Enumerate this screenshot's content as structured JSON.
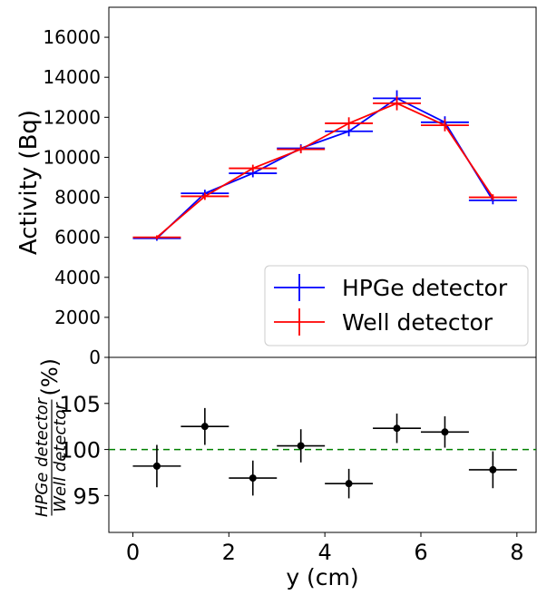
{
  "chart_data": [
    {
      "type": "line",
      "ylabel": "Activity (Bq)",
      "ylim": [
        0,
        17500
      ],
      "xlim": [
        -0.5,
        8.4
      ],
      "y_ticks": [
        0,
        2000,
        4000,
        6000,
        8000,
        10000,
        12000,
        14000,
        16000
      ],
      "legend_position": "bottom-right",
      "grid": false,
      "series": [
        {
          "name": "HPGe detector",
          "color": "#0000ff",
          "points": [
            {
              "x": 0.5,
              "y": 5950,
              "xerr": 0.5,
              "yerr": 120
            },
            {
              "x": 1.5,
              "y": 8200,
              "xerr": 0.5,
              "yerr": 180
            },
            {
              "x": 2.5,
              "y": 9200,
              "xerr": 0.5,
              "yerr": 200
            },
            {
              "x": 3.5,
              "y": 10450,
              "xerr": 0.5,
              "yerr": 200
            },
            {
              "x": 4.5,
              "y": 11300,
              "xerr": 0.5,
              "yerr": 250
            },
            {
              "x": 5.5,
              "y": 12950,
              "xerr": 0.5,
              "yerr": 400
            },
            {
              "x": 6.5,
              "y": 11750,
              "xerr": 0.5,
              "yerr": 300
            },
            {
              "x": 7.5,
              "y": 7850,
              "xerr": 0.5,
              "yerr": 200
            }
          ]
        },
        {
          "name": "Well detector",
          "color": "#ff0000",
          "points": [
            {
              "x": 0.5,
              "y": 6000,
              "xerr": 0.5,
              "yerr": 100
            },
            {
              "x": 1.5,
              "y": 8050,
              "xerr": 0.5,
              "yerr": 180
            },
            {
              "x": 2.5,
              "y": 9450,
              "xerr": 0.5,
              "yerr": 180
            },
            {
              "x": 3.5,
              "y": 10400,
              "xerr": 0.5,
              "yerr": 200
            },
            {
              "x": 4.5,
              "y": 11700,
              "xerr": 0.5,
              "yerr": 300
            },
            {
              "x": 5.5,
              "y": 12700,
              "xerr": 0.5,
              "yerr": 350
            },
            {
              "x": 6.5,
              "y": 11600,
              "xerr": 0.5,
              "yerr": 300
            },
            {
              "x": 7.5,
              "y": 8000,
              "xerr": 0.5,
              "yerr": 150
            }
          ]
        }
      ]
    },
    {
      "type": "scatter",
      "xlabel": "y (cm)",
      "ylabel_numerator": "HPGe detector",
      "ylabel_denominator": "Well detector",
      "ylabel_unit": "(%)",
      "xlim": [
        -0.5,
        8.4
      ],
      "ylim": [
        91,
        110
      ],
      "x_ticks": [
        0,
        2,
        4,
        6,
        8
      ],
      "y_ticks": [
        95,
        100,
        105
      ],
      "reference_line": {
        "y": 100,
        "color": "#008000",
        "style": "dashed"
      },
      "grid": false,
      "points": [
        {
          "x": 0.5,
          "y": 98.2,
          "xerr": 0.5,
          "yerr": 2.3
        },
        {
          "x": 1.5,
          "y": 102.5,
          "xerr": 0.5,
          "yerr": 2.0
        },
        {
          "x": 2.5,
          "y": 96.9,
          "xerr": 0.5,
          "yerr": 1.9
        },
        {
          "x": 3.5,
          "y": 100.4,
          "xerr": 0.5,
          "yerr": 1.8
        },
        {
          "x": 4.5,
          "y": 96.3,
          "xerr": 0.5,
          "yerr": 1.6
        },
        {
          "x": 5.5,
          "y": 102.3,
          "xerr": 0.5,
          "yerr": 1.6
        },
        {
          "x": 6.5,
          "y": 101.9,
          "xerr": 0.5,
          "yerr": 1.7
        },
        {
          "x": 7.5,
          "y": 97.8,
          "xerr": 0.5,
          "yerr": 2.0
        }
      ]
    }
  ]
}
